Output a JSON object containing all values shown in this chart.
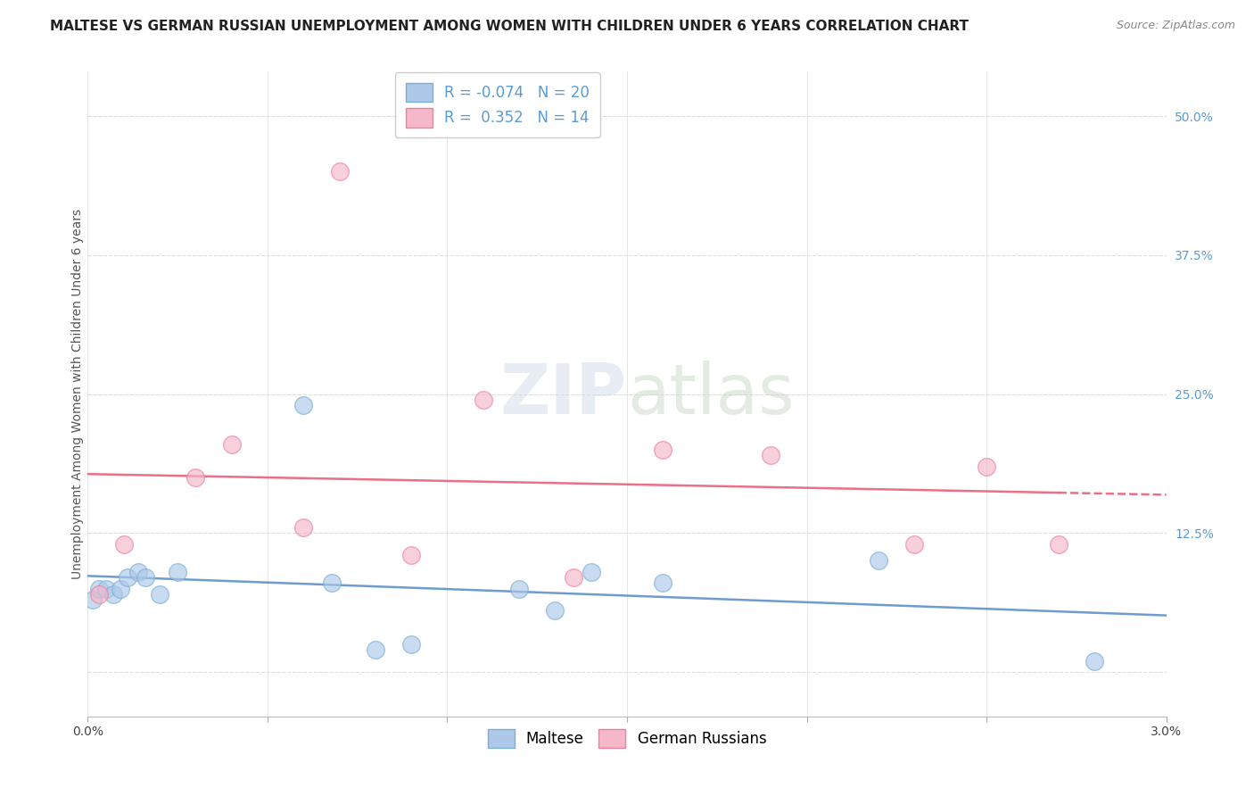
{
  "title": "MALTESE VS GERMAN RUSSIAN UNEMPLOYMENT AMONG WOMEN WITH CHILDREN UNDER 6 YEARS CORRELATION CHART",
  "source": "Source: ZipAtlas.com",
  "ylabel": "Unemployment Among Women with Children Under 6 years",
  "xlim": [
    0.0,
    0.03
  ],
  "ylim": [
    -0.04,
    0.54
  ],
  "xticks": [
    0.0,
    0.005,
    0.01,
    0.015,
    0.02,
    0.025,
    0.03
  ],
  "xtick_labels": [
    "0.0%",
    "",
    "",
    "",
    "",
    "",
    "3.0%"
  ],
  "yticks": [
    0.0,
    0.125,
    0.25,
    0.375,
    0.5
  ],
  "ytick_labels": [
    "",
    "12.5%",
    "25.0%",
    "37.5%",
    "50.0%"
  ],
  "maltese_R": -0.074,
  "maltese_N": 20,
  "german_russian_R": 0.352,
  "german_russian_N": 14,
  "maltese_color": "#adc8e8",
  "german_russian_color": "#f5b8ca",
  "maltese_edge_color": "#7aafd4",
  "german_russian_edge_color": "#f07fa0",
  "trend_maltese_color": "#6090c8",
  "trend_gr_color": "#e8607a",
  "maltese_x": [
    0.00015,
    0.0003,
    0.0005,
    0.0007,
    0.0009,
    0.0011,
    0.0014,
    0.0016,
    0.002,
    0.0025,
    0.006,
    0.0068,
    0.008,
    0.009,
    0.012,
    0.013,
    0.014,
    0.016,
    0.022,
    0.028
  ],
  "maltese_y": [
    0.065,
    0.075,
    0.075,
    0.07,
    0.075,
    0.085,
    0.09,
    0.085,
    0.07,
    0.09,
    0.24,
    0.08,
    0.02,
    0.025,
    0.075,
    0.055,
    0.09,
    0.08,
    0.1,
    0.01
  ],
  "german_russian_x": [
    0.0003,
    0.001,
    0.003,
    0.004,
    0.006,
    0.007,
    0.009,
    0.011,
    0.0135,
    0.016,
    0.019,
    0.023,
    0.025,
    0.027
  ],
  "german_russian_y": [
    0.07,
    0.115,
    0.175,
    0.205,
    0.13,
    0.45,
    0.105,
    0.245,
    0.085,
    0.2,
    0.195,
    0.115,
    0.185,
    0.115
  ],
  "watermark_zip": "ZIP",
  "watermark_atlas": "atlas",
  "background_color": "#ffffff",
  "grid_color": "#dddddd",
  "title_fontsize": 11,
  "axis_label_fontsize": 10,
  "tick_fontsize": 10,
  "legend_fontsize": 12,
  "marker_size": 200,
  "marker_alpha": 0.65,
  "dpi": 100
}
